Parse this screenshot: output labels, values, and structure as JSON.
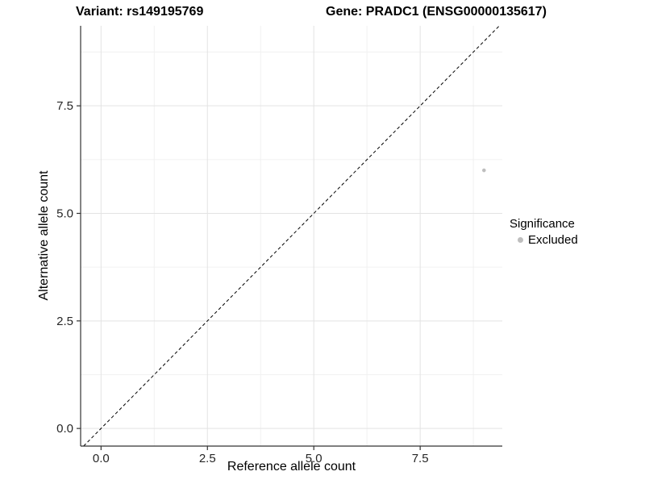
{
  "chart_data": {
    "type": "scatter",
    "titles": {
      "left": "Variant: rs149195769",
      "right": "Gene: PRADC1 (ENSG00000135617)"
    },
    "xlabel": "Reference allele count",
    "ylabel": "Alternative allele count",
    "xlim": [
      -0.48,
      9.43
    ],
    "ylim": [
      -0.41,
      9.36
    ],
    "x_major_ticks": [
      0,
      2.5,
      5,
      7.5
    ],
    "x_tick_labels": [
      "0.0",
      "2.5",
      "5.0",
      "7.5"
    ],
    "y_major_ticks": [
      0,
      2.5,
      5,
      7.5
    ],
    "y_tick_labels": [
      "0.0",
      "2.5",
      "5.0",
      "7.5"
    ],
    "x_minor_ticks": [
      1.25,
      3.75,
      6.25,
      8.75
    ],
    "y_minor_ticks": [
      1.25,
      3.75,
      6.25,
      8.75
    ],
    "grid": true,
    "reference_line": {
      "style": "dashed",
      "slope": 1,
      "intercept": 0,
      "color": "#000000"
    },
    "series": [
      {
        "name": "Excluded",
        "color": "#bebebe",
        "point_radius": 2.3,
        "points": [
          {
            "x": 9,
            "y": 6
          }
        ]
      }
    ],
    "legend": {
      "title": "Significance",
      "position": "right",
      "entries": [
        {
          "label": "Excluded",
          "color": "#bebebe"
        }
      ]
    },
    "colors": {
      "grid_major": "#e3e3e3",
      "grid_minor": "#f1f1f1",
      "axis": "#333333",
      "tick_text": "#262626",
      "title_text": "#000000"
    }
  }
}
